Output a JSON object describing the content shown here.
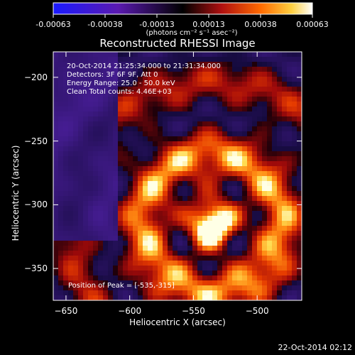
{
  "chart_data": {
    "type": "heatmap",
    "title": "Reconstructed RHESSI Image",
    "xlabel": "Heliocentric X (arcsec)",
    "ylabel": "Heliocentric Y (arcsec)",
    "xlim": [
      -660,
      -465
    ],
    "ylim": [
      -375,
      -180
    ],
    "x_ticks": [
      -650,
      -600,
      -550,
      -500
    ],
    "y_ticks": [
      -350,
      -300,
      -250,
      -200
    ],
    "colorbar": {
      "ticks": [
        "-0.00063",
        "-0.00038",
        "-0.00013",
        "0.00013",
        "0.00038",
        "0.00063"
      ],
      "range": [
        -0.00063,
        0.00063
      ],
      "units": "(photons cm⁻² s⁻¹ asec⁻²)"
    },
    "annotations": {
      "time": "20-Oct-2014 21:25:34.000 to 21:31:34.000",
      "detectors": "Detectors: 3F 6F 9F, Att 0",
      "energy": "Energy Range: 25.0 - 50.0 keV",
      "clean": "Clean     Total counts: 4.46E+03",
      "peak": "Position of Peak = [-535,-315]"
    },
    "peak_position": [
      -535,
      -315
    ],
    "grid": false
  },
  "timestamp": "22-Oct-2014 02:12"
}
